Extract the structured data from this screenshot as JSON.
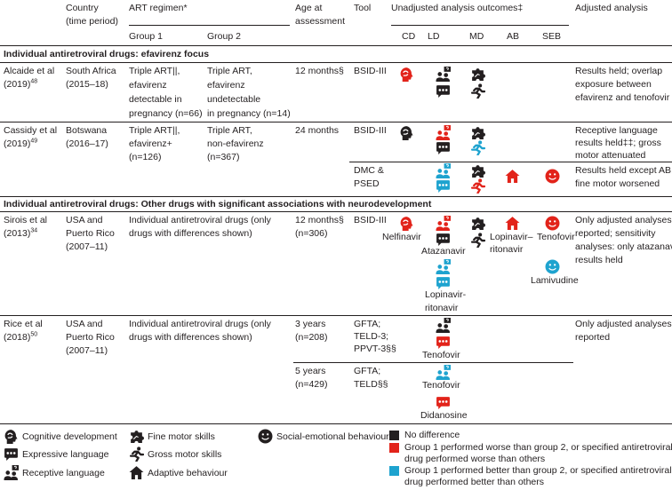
{
  "columns": {
    "country": [
      "Country",
      "(time period)"
    ],
    "art": "ART regimen*",
    "group1": "Group 1",
    "group2": "Group 2",
    "age": [
      "Age at",
      "assessment"
    ],
    "tool": "Tool",
    "unadjusted": "Unadjusted analysis outcomes‡",
    "outcomes": [
      "CD",
      "LD",
      "MD",
      "AB",
      "SEB"
    ],
    "adjusted": "Adjusted analysis"
  },
  "sections": [
    "Individual antiretroviral drugs: efavirenz focus",
    "Individual antiretroviral drugs: Other drugs with significant associations with neurodevelopment"
  ],
  "rows": [
    {
      "study": [
        "Alcaide et al",
        "(2019)"
      ],
      "ref": "48",
      "country": [
        "South Africa",
        "(2015–18)"
      ],
      "group1": [
        "Triple ART||,",
        "efavirenz",
        "detectable in",
        "pregnancy (n=66)"
      ],
      "group2": [
        "Triple ART,",
        "efavirenz",
        "undetectable",
        "in pregnancy (n=14)"
      ],
      "assessments": [
        {
          "age": [
            "12 months§"
          ],
          "tool": [
            "BSID-III"
          ],
          "adjusted": [
            "Results held; overlap",
            "exposure between",
            "efavirenz and tenofovir"
          ]
        }
      ]
    },
    {
      "study": [
        "Cassidy et al",
        "(2019)"
      ],
      "ref": "49",
      "country": [
        "Botswana",
        "(2016–17)"
      ],
      "group1": [
        "Triple ART||,",
        "efavirenz+",
        "(n=126)"
      ],
      "group2": [
        "Triple ART,",
        "non-efavirenz",
        "(n=367)"
      ],
      "assessments": [
        {
          "age": [
            "24 months"
          ],
          "tool": [
            "BSID-III"
          ],
          "adjusted": [
            "Receptive language",
            "results held‡‡; gross",
            "motor attenuated"
          ]
        },
        {
          "tool": [
            "DMC &",
            "PSED"
          ],
          "adjusted": [
            "Results held except AB;",
            "fine motor worsened"
          ]
        }
      ]
    },
    {
      "study": [
        "Sirois et al",
        "(2013)"
      ],
      "ref": "34",
      "country": [
        "USA and",
        "Puerto Rico",
        "(2007–11)"
      ],
      "regimen": [
        "Individual antiretroviral drugs (only",
        "drugs with differences shown)"
      ],
      "assessments": [
        {
          "age": [
            "12 months§",
            "(n=306)"
          ],
          "tool": [
            "BSID-III"
          ],
          "adjusted": [
            "Only adjusted analyses",
            "reported; sensitivity",
            "analyses: only atazanavir",
            "results held"
          ],
          "drugs": [
            [
              "Nelfinavir"
            ],
            [
              "Atazanavir"
            ],
            [
              "Lopinavir-",
              "ritonavir"
            ],
            [
              "Lopinavir–",
              "ritonavir"
            ],
            [
              "Tenofovir"
            ],
            [
              "Lamivudine"
            ]
          ]
        }
      ]
    },
    {
      "study": [
        "Rice et al",
        "(2018)"
      ],
      "ref": "50",
      "country": [
        "USA and",
        "Puerto Rico",
        "(2007–11)"
      ],
      "regimen": [
        "Individual antiretroviral drugs (only",
        "drugs with differences shown)"
      ],
      "adjusted": [
        "Only adjusted analyses",
        "reported"
      ],
      "assessments": [
        {
          "age": [
            "3 years",
            "(n=208)"
          ],
          "tool": [
            "GFTA;",
            "TELD-3;",
            "PPVT-3§§"
          ],
          "drugs": [
            [
              "Tenofovir"
            ]
          ]
        },
        {
          "age": [
            "5 years",
            "(n=429)"
          ],
          "tool": [
            "GFTA;",
            "TELD§§"
          ],
          "drugs": [
            [
              "Tenofovir"
            ],
            [
              "Didanosine"
            ]
          ]
        }
      ]
    }
  ],
  "legend": {
    "icons": [
      "Cognitive development",
      "Expressive language",
      "Receptive language",
      "Fine motor skills",
      "Gross motor skills",
      "Adaptive behaviour",
      "Social-emotional behaviour"
    ],
    "colors": [
      {
        "color": "#231f20",
        "lines": [
          "No difference"
        ]
      },
      {
        "color": "#e2231a",
        "lines": [
          "Group 1 performed worse than group 2, or specified antiretroviral",
          "drug performed worse than others"
        ]
      },
      {
        "color": "#1ea3cf",
        "lines": [
          "Group 1 performed better than group 2, or specified antiretroviral",
          "drug performed better than others"
        ]
      }
    ]
  }
}
